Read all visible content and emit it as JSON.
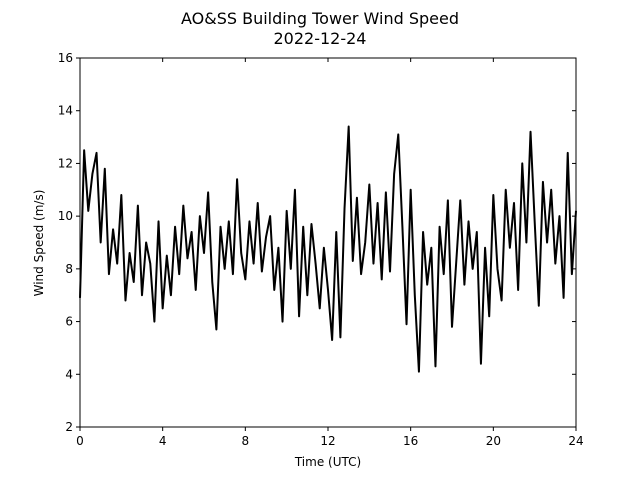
{
  "chart_data": {
    "type": "line",
    "title": "AO&SS Building Tower Wind Speed",
    "subtitle": "2022-12-24",
    "x_label": "Time (UTC)",
    "y_label": "Wind Speed (m/s)",
    "color": "#000000",
    "x": [
      0,
      0.2,
      0.4,
      0.6,
      0.8,
      1,
      1.2,
      1.4,
      1.6,
      1.8,
      2,
      2.2,
      2.4,
      2.6,
      2.8,
      3,
      3.2,
      3.4,
      3.6,
      3.8,
      4,
      4.2,
      4.4,
      4.6,
      4.8,
      5,
      5.2,
      5.4,
      5.6,
      5.8,
      6,
      6.2,
      6.4,
      6.6,
      6.8,
      7,
      7.2,
      7.4,
      7.6,
      7.8,
      8,
      8.2,
      8.4,
      8.6,
      8.8,
      9,
      9.2,
      9.4,
      9.6,
      9.8,
      10,
      10.2,
      10.4,
      10.6,
      10.8,
      11,
      11.2,
      11.4,
      11.6,
      11.8,
      12,
      12.2,
      12.4,
      12.6,
      12.8,
      13,
      13.2,
      13.4,
      13.6,
      13.8,
      14,
      14.2,
      14.4,
      14.6,
      14.8,
      15,
      15.2,
      15.4,
      15.6,
      15.8,
      16,
      16.2,
      16.4,
      16.6,
      16.8,
      17,
      17.2,
      17.4,
      17.6,
      17.8,
      18,
      18.2,
      18.4,
      18.6,
      18.8,
      19,
      19.2,
      19.4,
      19.6,
      19.8,
      20,
      20.2,
      20.4,
      20.6,
      20.8,
      21,
      21.2,
      21.4,
      21.6,
      21.8,
      22,
      22.2,
      22.4,
      22.6,
      22.8,
      23,
      23.2,
      23.4,
      23.6,
      23.8,
      24
    ],
    "values": [
      6.9,
      12.5,
      10.2,
      11.6,
      12.4,
      9.0,
      11.8,
      7.8,
      9.5,
      8.2,
      10.8,
      6.8,
      8.6,
      7.5,
      10.4,
      7.0,
      9.0,
      8.2,
      6.0,
      9.8,
      6.5,
      8.5,
      7.0,
      9.6,
      7.8,
      10.4,
      8.4,
      9.4,
      7.2,
      10.0,
      8.6,
      10.9,
      7.5,
      5.7,
      9.6,
      8.0,
      9.8,
      7.8,
      11.4,
      8.6,
      7.6,
      9.8,
      8.2,
      10.5,
      7.9,
      9.2,
      10.0,
      7.2,
      8.8,
      6.0,
      10.2,
      8.0,
      11.0,
      6.2,
      9.6,
      7.0,
      9.7,
      8.2,
      6.5,
      8.8,
      7.2,
      5.3,
      9.4,
      5.4,
      10.3,
      13.4,
      8.3,
      10.7,
      7.8,
      9.0,
      11.2,
      8.2,
      10.5,
      7.6,
      10.9,
      7.9,
      11.6,
      13.1,
      9.6,
      5.9,
      11.0,
      7.0,
      4.1,
      9.4,
      7.4,
      8.8,
      4.3,
      9.6,
      7.8,
      10.6,
      5.8,
      8.2,
      10.6,
      7.4,
      9.8,
      8.0,
      9.4,
      4.4,
      8.8,
      6.2,
      10.8,
      8.0,
      6.8,
      11.0,
      8.8,
      10.5,
      7.2,
      12.0,
      9.0,
      13.2,
      9.8,
      6.6,
      11.3,
      9.0,
      11.0,
      8.2,
      10.0,
      6.9,
      12.4,
      7.8,
      10.2
    ],
    "xlim": [
      0,
      24
    ],
    "xticks": [
      0,
      4,
      8,
      12,
      16,
      20,
      24
    ],
    "ylim": [
      2,
      16
    ],
    "yticks": [
      2,
      4,
      6,
      8,
      10,
      12,
      14,
      16
    ]
  }
}
